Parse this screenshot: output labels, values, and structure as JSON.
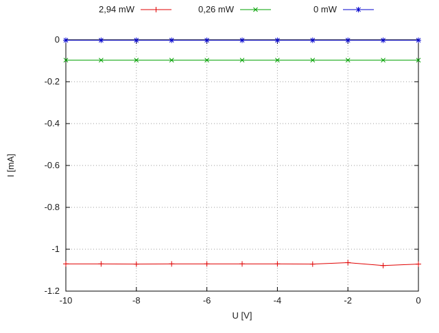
{
  "chart_data": {
    "type": "line",
    "title": "",
    "xlabel": "U [V]",
    "ylabel": "I [mA]",
    "xlim": [
      -10,
      0
    ],
    "ylim": [
      -1.2,
      0
    ],
    "xticks": [
      -10,
      -8,
      -6,
      -4,
      -2,
      0
    ],
    "yticks": [
      0,
      -0.2,
      -0.4,
      -0.6,
      -0.8,
      -1,
      -1.2
    ],
    "grid": true,
    "legend_position": "top-outside-horizontal",
    "x": [
      -10,
      -9,
      -8,
      -7,
      -6,
      -5,
      -4,
      -3,
      -2,
      -1,
      0
    ],
    "series": [
      {
        "name": "2,94 mW",
        "color": "#e00000",
        "marker": "plus",
        "values": [
          -1.07,
          -1.07,
          -1.071,
          -1.07,
          -1.07,
          -1.07,
          -1.07,
          -1.071,
          -1.064,
          -1.078,
          -1.071
        ]
      },
      {
        "name": "0,26 mW",
        "color": "#00a000",
        "marker": "cross",
        "values": [
          -0.097,
          -0.097,
          -0.097,
          -0.097,
          -0.097,
          -0.097,
          -0.097,
          -0.097,
          -0.097,
          -0.097,
          -0.097
        ]
      },
      {
        "name": "0 mW",
        "color": "#0000cc",
        "marker": "asterisk",
        "values": [
          -0.002,
          -0.002,
          -0.002,
          -0.002,
          -0.002,
          -0.002,
          -0.002,
          -0.002,
          -0.002,
          -0.002,
          -0.002
        ]
      }
    ]
  },
  "colors": {
    "background": "#ffffff",
    "axis": "#000000",
    "grid": "#9a9a9a",
    "text": "#1a1a1a"
  }
}
